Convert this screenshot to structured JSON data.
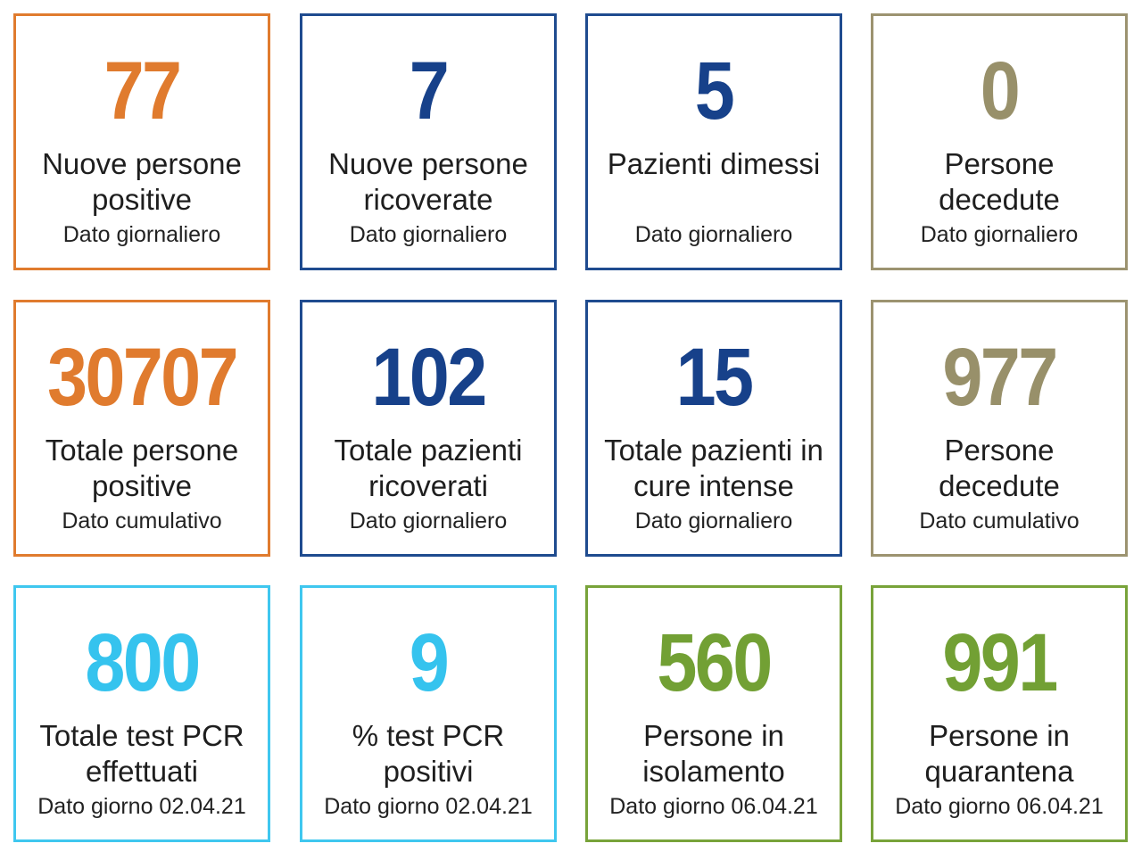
{
  "colors": {
    "orange": "#e07b2e",
    "navy": "#17418a",
    "olive": "#98906a",
    "cyan": "#35c3ee",
    "green": "#72a034"
  },
  "tiles": [
    {
      "value": "77",
      "label": "Nuove persone positive",
      "note": "Dato giornaliero"
    },
    {
      "value": "7",
      "label": "Nuove persone ricoverate",
      "note": "Dato giornaliero"
    },
    {
      "value": "5",
      "label": "Pazienti dimessi",
      "note": "Dato giornaliero"
    },
    {
      "value": "0",
      "label": "Persone decedute",
      "note": "Dato giornaliero"
    },
    {
      "value": "30707",
      "label": "Totale persone positive",
      "note": "Dato cumulativo"
    },
    {
      "value": "102",
      "label": "Totale pazienti ricoverati",
      "note": "Dato giornaliero"
    },
    {
      "value": "15",
      "label": "Totale pazienti in cure intense",
      "note": "Dato giornaliero"
    },
    {
      "value": "977",
      "label": "Persone decedute",
      "note": "Dato cumulativo"
    },
    {
      "value": "800",
      "label": "Totale test PCR effettuati",
      "note": "Dato giorno 02.04.21"
    },
    {
      "value": "9",
      "label": "% test PCR positivi",
      "note": "Dato giorno 02.04.21"
    },
    {
      "value": "560",
      "label": "Persone in isolamento",
      "note": "Dato giorno 06.04.21"
    },
    {
      "value": "991",
      "label": "Persone in quarantena",
      "note": "Dato giorno 06.04.21"
    }
  ]
}
